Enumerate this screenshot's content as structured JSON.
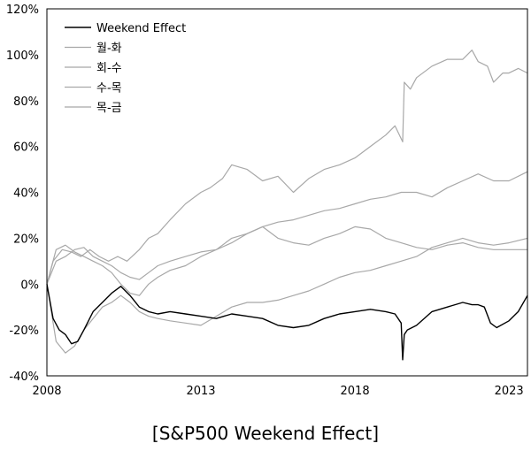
{
  "chart_data": {
    "type": "line",
    "caption": "[S&P500 Weekend Effect]",
    "xlim": [
      2008,
      2023.6
    ],
    "ylim": [
      -40,
      120
    ],
    "x_ticks": [
      2008,
      2013,
      2018,
      2023
    ],
    "x_tick_labels": [
      "2008",
      "2013",
      "2018",
      "2023"
    ],
    "y_ticks": [
      -40,
      -20,
      0,
      20,
      40,
      60,
      80,
      100,
      120
    ],
    "y_tick_labels": [
      "-40%",
      "-20%",
      "0%",
      "20%",
      "40%",
      "60%",
      "80%",
      "100%",
      "120%"
    ],
    "legend": {
      "position": "top-left"
    },
    "series": [
      {
        "name": "Weekend Effect",
        "color": "#000000",
        "x": [
          2008,
          2008.2,
          2008.4,
          2008.6,
          2008.8,
          2009.0,
          2009.2,
          2009.5,
          2009.8,
          2010.1,
          2010.4,
          2010.7,
          2011.0,
          2011.3,
          2011.6,
          2012.0,
          2012.5,
          2013.0,
          2013.5,
          2014.0,
          2014.5,
          2015.0,
          2015.5,
          2016.0,
          2016.5,
          2017.0,
          2017.5,
          2018.0,
          2018.5,
          2019.0,
          2019.3,
          2019.5,
          2019.55,
          2019.6,
          2019.7,
          2020.0,
          2020.5,
          2021.0,
          2021.5,
          2021.8,
          2022.0,
          2022.2,
          2022.4,
          2022.6,
          2023.0,
          2023.3,
          2023.6
        ],
        "y": [
          0,
          -15,
          -20,
          -22,
          -26,
          -25,
          -20,
          -12,
          -8,
          -4,
          -1,
          -5,
          -10,
          -12,
          -13,
          -12,
          -13,
          -14,
          -15,
          -13,
          -14,
          -15,
          -18,
          -19,
          -18,
          -15,
          -13,
          -12,
          -11,
          -12,
          -13,
          -17,
          -33,
          -22,
          -20,
          -18,
          -12,
          -10,
          -8,
          -9,
          -9,
          -10,
          -17,
          -19,
          -16,
          -12,
          -5
        ]
      },
      {
        "name": "월-화",
        "color": "#a8a8a8",
        "x": [
          2008,
          2008.2,
          2008.5,
          2008.8,
          2009.1,
          2009.4,
          2009.7,
          2010.0,
          2010.3,
          2010.6,
          2011.0,
          2011.3,
          2011.6,
          2012.0,
          2012.5,
          2013.0,
          2013.3,
          2013.7,
          2014.0,
          2014.5,
          2015.0,
          2015.5,
          2016.0,
          2016.5,
          2017.0,
          2017.5,
          2018.0,
          2018.5,
          2019.0,
          2019.3,
          2019.55,
          2019.6,
          2019.8,
          2020.0,
          2020.5,
          2021.0,
          2021.5,
          2021.8,
          2022.0,
          2022.3,
          2022.5,
          2022.8,
          2023.0,
          2023.3,
          2023.6
        ],
        "y": [
          0,
          10,
          15,
          14,
          12,
          15,
          12,
          10,
          12,
          10,
          15,
          20,
          22,
          28,
          35,
          40,
          42,
          46,
          52,
          50,
          45,
          47,
          40,
          46,
          50,
          52,
          55,
          60,
          65,
          69,
          62,
          88,
          85,
          90,
          95,
          98,
          98,
          102,
          97,
          95,
          88,
          92,
          92,
          94,
          92
        ]
      },
      {
        "name": "회-수",
        "color": "#a8a8a8",
        "x": [
          2008,
          2008.3,
          2008.6,
          2008.9,
          2009.2,
          2009.5,
          2009.8,
          2010.1,
          2010.4,
          2010.7,
          2011.0,
          2011.3,
          2011.6,
          2012.0,
          2012.5,
          2013.0,
          2013.5,
          2014.0,
          2014.5,
          2015.0,
          2015.5,
          2016.0,
          2016.5,
          2017.0,
          2017.5,
          2018.0,
          2018.5,
          2019.0,
          2019.5,
          2020.0,
          2020.5,
          2021.0,
          2021.5,
          2022.0,
          2022.5,
          2023.0,
          2023.6
        ],
        "y": [
          0,
          -25,
          -30,
          -27,
          -20,
          -15,
          -10,
          -8,
          -5,
          -8,
          -12,
          -14,
          -15,
          -16,
          -17,
          -18,
          -14,
          -10,
          -8,
          -8,
          -7,
          -5,
          -3,
          0,
          3,
          5,
          6,
          8,
          10,
          12,
          16,
          18,
          20,
          18,
          17,
          18,
          20
        ]
      },
      {
        "name": "수-목",
        "color": "#a8a8a8",
        "x": [
          2008,
          2008.3,
          2008.6,
          2008.9,
          2009.2,
          2009.5,
          2009.8,
          2010.1,
          2010.4,
          2010.7,
          2011.0,
          2011.3,
          2011.6,
          2012.0,
          2012.5,
          2013.0,
          2013.5,
          2014.0,
          2014.5,
          2015.0,
          2015.5,
          2016.0,
          2016.5,
          2017.0,
          2017.5,
          2018.0,
          2018.5,
          2019.0,
          2019.5,
          2020.0,
          2020.5,
          2021.0,
          2021.5,
          2022.0,
          2022.5,
          2023.0,
          2023.6
        ],
        "y": [
          0,
          15,
          17,
          14,
          12,
          10,
          8,
          5,
          0,
          -4,
          -5,
          0,
          3,
          6,
          8,
          12,
          15,
          18,
          22,
          25,
          27,
          28,
          30,
          32,
          33,
          35,
          37,
          38,
          40,
          40,
          38,
          42,
          45,
          48,
          45,
          45,
          49
        ]
      },
      {
        "name": "목-금",
        "color": "#a8a8a8",
        "x": [
          2008,
          2008.3,
          2008.6,
          2008.9,
          2009.2,
          2009.5,
          2009.8,
          2010.1,
          2010.4,
          2010.7,
          2011.0,
          2011.3,
          2011.6,
          2012.0,
          2012.5,
          2013.0,
          2013.5,
          2014.0,
          2014.5,
          2015.0,
          2015.5,
          2016.0,
          2016.5,
          2017.0,
          2017.5,
          2018.0,
          2018.5,
          2019.0,
          2019.5,
          2020.0,
          2020.5,
          2021.0,
          2021.5,
          2022.0,
          2022.5,
          2023.0,
          2023.6
        ],
        "y": [
          0,
          10,
          12,
          15,
          16,
          12,
          10,
          8,
          5,
          3,
          2,
          5,
          8,
          10,
          12,
          14,
          15,
          20,
          22,
          25,
          20,
          18,
          17,
          20,
          22,
          25,
          24,
          20,
          18,
          16,
          15,
          17,
          18,
          16,
          15,
          15,
          15
        ]
      }
    ]
  }
}
